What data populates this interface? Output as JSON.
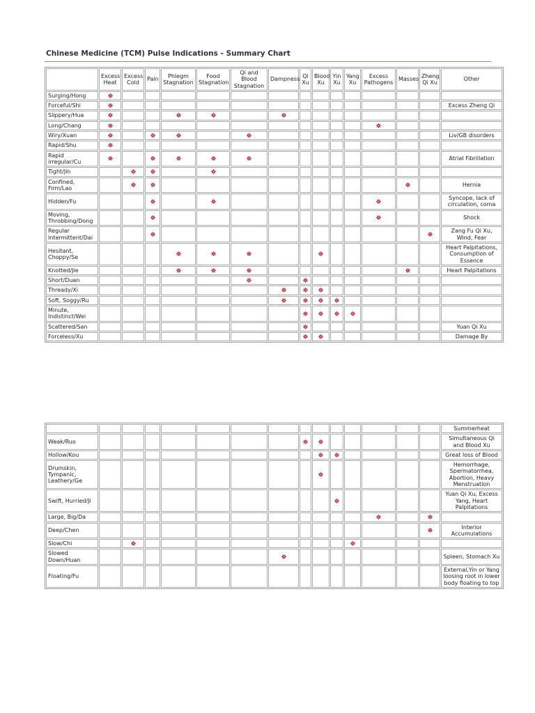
{
  "header": {
    "title": "Chinese Medicine (TCM) Pulse Indications - Summary Chart"
  },
  "columns": [
    "Excess Heat",
    "Excess Cold",
    "Pain",
    "Phlegm Stagnation",
    "Food Stagnation",
    "Qi and Blood Stagnation",
    "Dampness",
    "Qi Xu",
    "Blood Xu",
    "Yin Xu",
    "Yang Xu",
    "Excess Pathogens",
    "Masses",
    "Zheng Qi Xu",
    "Other"
  ],
  "tables": [
    {
      "rows": [
        {
          "label": "Surging/Hong",
          "marks": [
            true,
            false,
            false,
            false,
            false,
            false,
            false,
            false,
            false,
            false,
            false,
            false,
            false,
            false
          ],
          "other": null
        },
        {
          "label": "Forceful/Shi",
          "marks": [
            true,
            false,
            false,
            false,
            false,
            false,
            false,
            false,
            false,
            false,
            false,
            false,
            false,
            false
          ],
          "other": "Excess Zheng Qi"
        },
        {
          "label": "Slippery/Hua",
          "marks": [
            true,
            false,
            false,
            true,
            true,
            false,
            true,
            false,
            false,
            false,
            false,
            false,
            false,
            false
          ],
          "other": null
        },
        {
          "label": "Long/Chang",
          "marks": [
            true,
            false,
            false,
            false,
            false,
            false,
            false,
            false,
            false,
            false,
            false,
            true,
            false,
            false
          ],
          "other": null
        },
        {
          "label": "Wiry/Xuan",
          "marks": [
            true,
            false,
            true,
            true,
            false,
            true,
            false,
            false,
            false,
            false,
            false,
            false,
            false,
            false
          ],
          "other": "Liv/GB disorders"
        },
        {
          "label": "Rapid/Shu",
          "marks": [
            true,
            false,
            false,
            false,
            false,
            false,
            false,
            false,
            false,
            false,
            false,
            false,
            false,
            false
          ],
          "other": null
        },
        {
          "label": "Rapid irregular/Cu",
          "marks": [
            true,
            false,
            true,
            true,
            true,
            true,
            false,
            false,
            false,
            false,
            false,
            false,
            false,
            false
          ],
          "other": "Atrial Fibrillation"
        },
        {
          "label": "Tight/Jin",
          "marks": [
            false,
            true,
            true,
            false,
            true,
            false,
            false,
            false,
            false,
            false,
            false,
            false,
            false,
            false
          ],
          "other": null
        },
        {
          "label": "Confined, Firm/Lao",
          "marks": [
            false,
            true,
            true,
            false,
            false,
            false,
            false,
            false,
            false,
            false,
            false,
            false,
            true,
            false
          ],
          "other": "Hernia"
        },
        {
          "label": "Hidden/Fu",
          "marks": [
            false,
            false,
            true,
            false,
            true,
            false,
            false,
            false,
            false,
            false,
            false,
            true,
            false,
            false
          ],
          "other": "Syncope, lack of circulation, coma"
        },
        {
          "label": "Moving, Throbbing/Dong",
          "marks": [
            false,
            false,
            true,
            false,
            false,
            false,
            false,
            false,
            false,
            false,
            false,
            true,
            false,
            false
          ],
          "other": "Shock"
        },
        {
          "label": "Regular Intermittent/Dai",
          "marks": [
            false,
            false,
            true,
            false,
            false,
            false,
            false,
            false,
            false,
            false,
            false,
            false,
            false,
            true
          ],
          "other": "Zang Fu Qi Xu, Wind, Fear"
        },
        {
          "label": "Hesitant, Choppy/Se",
          "marks": [
            false,
            false,
            false,
            true,
            true,
            true,
            false,
            false,
            true,
            false,
            false,
            false,
            false,
            false
          ],
          "other": "Heart Palpitations, Consumption of Essence"
        },
        {
          "label": "Knotted/Jie",
          "marks": [
            false,
            false,
            false,
            true,
            true,
            true,
            false,
            false,
            false,
            false,
            false,
            false,
            true,
            false
          ],
          "other": "Heart Palpitations"
        },
        {
          "label": "Short/Duan",
          "marks": [
            false,
            false,
            false,
            false,
            false,
            true,
            false,
            true,
            false,
            false,
            false,
            false,
            false,
            false
          ],
          "other": null
        },
        {
          "label": "Thready/Xi",
          "marks": [
            false,
            false,
            false,
            false,
            false,
            false,
            true,
            true,
            true,
            false,
            false,
            false,
            false,
            false
          ],
          "other": null
        },
        {
          "label": "Soft, Soggy/Ru",
          "marks": [
            false,
            false,
            false,
            false,
            false,
            false,
            true,
            true,
            true,
            true,
            false,
            false,
            false,
            false
          ],
          "other": null
        },
        {
          "label": "Minute, Indistinct/Wei",
          "marks": [
            false,
            false,
            false,
            false,
            false,
            false,
            false,
            true,
            true,
            true,
            true,
            false,
            false,
            false
          ],
          "other": null
        },
        {
          "label": "Scattered/San",
          "marks": [
            false,
            false,
            false,
            false,
            false,
            false,
            false,
            true,
            false,
            false,
            false,
            false,
            false,
            false
          ],
          "other": "Yuan Qi Xu"
        },
        {
          "label": "Forceless/Xu",
          "marks": [
            false,
            false,
            false,
            false,
            false,
            false,
            false,
            true,
            true,
            false,
            false,
            false,
            false,
            false
          ],
          "other": "Damage By"
        }
      ]
    },
    {
      "rows": [
        {
          "label": null,
          "marks": [
            false,
            false,
            false,
            false,
            false,
            false,
            false,
            false,
            false,
            false,
            false,
            false,
            false,
            false
          ],
          "other": "Summerheat"
        },
        {
          "label": "Weak/Ruo",
          "marks": [
            false,
            false,
            false,
            false,
            false,
            false,
            false,
            true,
            true,
            false,
            false,
            false,
            false,
            false
          ],
          "other": "Simultaneous Qi and Blood Xu"
        },
        {
          "label": "Hollow/Kou",
          "marks": [
            false,
            false,
            false,
            false,
            false,
            false,
            false,
            false,
            true,
            true,
            false,
            false,
            false,
            false
          ],
          "other": "Great loss of Blood"
        },
        {
          "label": "Drumskin, Tympanic, Leathery/Ge",
          "marks": [
            false,
            false,
            false,
            false,
            false,
            false,
            false,
            false,
            true,
            false,
            false,
            false,
            false,
            false
          ],
          "other": "Hemorrhage, Spermatorrhea, Abortion, Heavy Menstruation"
        },
        {
          "label": "Swift, Hurried/Ji",
          "marks": [
            false,
            false,
            false,
            false,
            false,
            false,
            false,
            false,
            false,
            true,
            false,
            false,
            false,
            false
          ],
          "other": "Yuan Qi Xu, Excess Yang, Heart Palpitations"
        },
        {
          "label": "Large, Big/Da",
          "marks": [
            false,
            false,
            false,
            false,
            false,
            false,
            false,
            false,
            false,
            false,
            false,
            true,
            false,
            true
          ],
          "other": null
        },
        {
          "label": "Deep/Chen",
          "marks": [
            false,
            false,
            false,
            false,
            false,
            false,
            false,
            false,
            false,
            false,
            false,
            false,
            false,
            true
          ],
          "other": "Interior Accumulations"
        },
        {
          "label": "Slow/Chi",
          "marks": [
            false,
            true,
            false,
            false,
            false,
            false,
            false,
            false,
            false,
            false,
            true,
            false,
            false,
            false
          ],
          "other": null
        },
        {
          "label": "Slowed Down/Huan",
          "marks": [
            false,
            false,
            false,
            false,
            false,
            false,
            true,
            false,
            false,
            false,
            false,
            false,
            false,
            false
          ],
          "other": "Spleen, Stomach Xu"
        },
        {
          "label": "Floating/Fu",
          "marks": [
            false,
            false,
            false,
            false,
            false,
            false,
            false,
            false,
            false,
            false,
            false,
            false,
            false,
            false
          ],
          "other": "External,Yin or Yang loosing root in lower body floating to top"
        }
      ]
    }
  ]
}
